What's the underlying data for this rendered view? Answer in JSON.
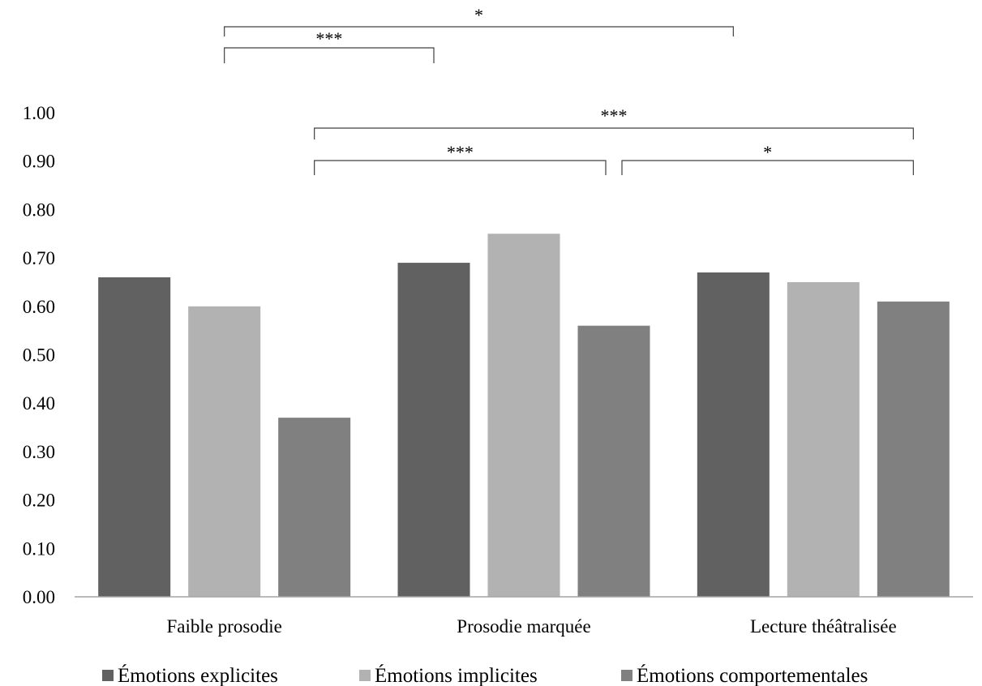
{
  "chart_data": {
    "type": "bar",
    "categories": [
      "Faible prosodie",
      "Prosodie marquée",
      "Lecture théâtralisée"
    ],
    "series": [
      {
        "name": "Émotions explicites",
        "color": "#616161",
        "values": [
          0.66,
          0.69,
          0.67
        ]
      },
      {
        "name": "Émotions implicites",
        "color": "#b2b2b2",
        "values": [
          0.6,
          0.75,
          0.65
        ]
      },
      {
        "name": "Émotions comportementales",
        "color": "#808080",
        "values": [
          0.37,
          0.56,
          0.61
        ]
      }
    ],
    "ylim": [
      0,
      1.0
    ],
    "yticks": [
      "0.00",
      "0.10",
      "0.20",
      "0.30",
      "0.40",
      "0.50",
      "0.60",
      "0.70",
      "0.80",
      "0.90",
      "1.00"
    ],
    "grid": false,
    "legend_position": "bottom",
    "significance": [
      {
        "from": {
          "category": 0,
          "series": 1
        },
        "to": {
          "category": 2,
          "series": 0
        },
        "label": "*"
      },
      {
        "from": {
          "category": 0,
          "series": 1
        },
        "to": {
          "category": 1,
          "series": 0
        },
        "label": "***"
      },
      {
        "from": {
          "category": 0,
          "series": 2
        },
        "to": {
          "category": 2,
          "series": 2
        },
        "label": "***"
      },
      {
        "from": {
          "category": 0,
          "series": 2
        },
        "to": {
          "category": 1,
          "series": 2
        },
        "label": "***"
      },
      {
        "from": {
          "category": 1,
          "series": 2
        },
        "to": {
          "category": 2,
          "series": 2
        },
        "label": "*"
      }
    ]
  }
}
